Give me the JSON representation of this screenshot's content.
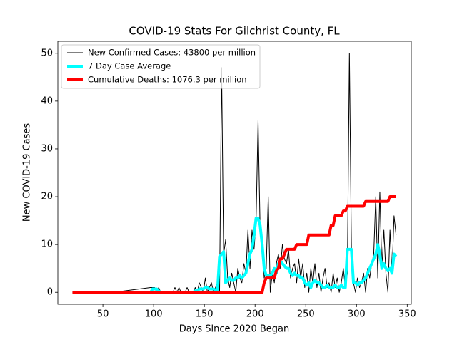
{
  "chart_data": {
    "type": "line",
    "title": "COVID-19 Stats For Gilchrist County, FL",
    "xlabel": "Days Since 2020 Began",
    "ylabel": "New COVID-19 Cases",
    "xlim": [
      5.6,
      354
    ],
    "ylim": [
      -2.5,
      52.5
    ],
    "xticks": [
      50,
      100,
      150,
      200,
      250,
      300,
      350
    ],
    "yticks": [
      0,
      10,
      20,
      30,
      40,
      50
    ],
    "legend": "upper left",
    "x": [
      20,
      60,
      97,
      99,
      101,
      103,
      105,
      107,
      109,
      111,
      113,
      115,
      117,
      119,
      121,
      123,
      125,
      127,
      129,
      131,
      133,
      135,
      137,
      139,
      141,
      143,
      145,
      147,
      149,
      151,
      153,
      155,
      157,
      159,
      161,
      163,
      165,
      167,
      169,
      171,
      173,
      175,
      177,
      179,
      181,
      183,
      185,
      187,
      189,
      191,
      193,
      195,
      197,
      199,
      201,
      203,
      205,
      207,
      209,
      211,
      213,
      215,
      217,
      219,
      221,
      223,
      225,
      227,
      229,
      231,
      233,
      235,
      237,
      239,
      241,
      243,
      245,
      247,
      249,
      251,
      253,
      255,
      257,
      259,
      261,
      263,
      265,
      267,
      269,
      271,
      273,
      275,
      277,
      279,
      281,
      283,
      285,
      287,
      289,
      291,
      293,
      295,
      297,
      299,
      301,
      303,
      305,
      307,
      309,
      311,
      313,
      315,
      317,
      319,
      321,
      323,
      325,
      327,
      329,
      331,
      333,
      335,
      337,
      339
    ],
    "series": [
      {
        "name": "New Confirmed Cases: 43800 per million",
        "color": "#000000",
        "linewidth": 1,
        "values": [
          0,
          0,
          1,
          1,
          1,
          0,
          1,
          0,
          0,
          0,
          0,
          0,
          0,
          0,
          1,
          0,
          1,
          0,
          0,
          0,
          1,
          0,
          0,
          0,
          1,
          0,
          2,
          1,
          0,
          3,
          0,
          1,
          2,
          0,
          1,
          2,
          0,
          47,
          8,
          11,
          3,
          1,
          4,
          2,
          0,
          5,
          3,
          2,
          6,
          4,
          13,
          5,
          13,
          9,
          15,
          36,
          13,
          10,
          3,
          5,
          20,
          0,
          4,
          2,
          6,
          8,
          5,
          10,
          7,
          6,
          9,
          3,
          5,
          6,
          2,
          7,
          3,
          6,
          1,
          4,
          0,
          5,
          2,
          6,
          1,
          4,
          0,
          3,
          5,
          1,
          2,
          0,
          4,
          1,
          3,
          0,
          2,
          5,
          1,
          4,
          50,
          9,
          2,
          0,
          3,
          1,
          2,
          4,
          0,
          5,
          3,
          6,
          8,
          20,
          3,
          21,
          5,
          13,
          4,
          0,
          13,
          4,
          16,
          12
        ]
      },
      {
        "name": "7 Day Case Average",
        "color": "#00ffff",
        "linewidth": 4,
        "values": [
          0,
          0,
          0,
          0.7,
          0.7,
          0.7,
          0.3,
          0,
          0,
          0,
          0,
          0,
          0,
          0,
          0,
          0,
          0,
          0,
          0,
          0,
          0,
          0,
          0,
          0,
          0.3,
          0.3,
          0.7,
          0.7,
          0.7,
          1,
          1,
          0.7,
          0.7,
          0.7,
          0.5,
          0.5,
          7.5,
          8,
          8.5,
          2,
          2.5,
          3,
          2.5,
          2.5,
          3,
          3,
          3.5,
          3,
          3.5,
          4,
          6,
          8,
          9,
          12,
          15.5,
          15.5,
          14,
          10,
          5,
          3.5,
          3.5,
          3.5,
          4,
          5,
          4,
          6,
          6.5,
          6,
          5.5,
          5,
          5,
          4,
          3.5,
          4,
          3.5,
          3.5,
          3,
          3,
          2,
          1.5,
          2,
          1,
          2,
          2.5,
          2,
          2,
          1.5,
          1,
          1,
          1.5,
          1,
          1,
          1,
          1.5,
          1,
          1,
          1.5,
          1,
          1,
          9,
          9,
          9,
          2,
          2,
          1.5,
          2,
          2,
          2.5,
          3,
          4,
          5,
          6,
          7,
          8,
          10,
          8,
          5,
          6,
          5,
          4.5,
          5,
          4,
          8,
          7.5
        ]
      },
      {
        "name": "Cumulative Deaths: 1076.3 per million",
        "color": "#ff0000",
        "linewidth": 4,
        "values": [
          0,
          0,
          0,
          0,
          0,
          0,
          0,
          0,
          0,
          0,
          0,
          0,
          0,
          0,
          0,
          0,
          0,
          0,
          0,
          0,
          0,
          0,
          0,
          0,
          0,
          0,
          0,
          0,
          0,
          0,
          0,
          0,
          0,
          0,
          0,
          0,
          0,
          0,
          0,
          0,
          0,
          0,
          0,
          0,
          0,
          0,
          0,
          0,
          0,
          0,
          0,
          0,
          0,
          0,
          0,
          0,
          0,
          0,
          2,
          3,
          3,
          3,
          3,
          3,
          4.5,
          5,
          7,
          7,
          8,
          9,
          9,
          9,
          9,
          9,
          10,
          10,
          10,
          10,
          10,
          10,
          12,
          12,
          12,
          12,
          12,
          12,
          12,
          12,
          12,
          12,
          12,
          14,
          14,
          16,
          16,
          16,
          16,
          17,
          17,
          18,
          18,
          18,
          18,
          18,
          18,
          18,
          18,
          18,
          19,
          19,
          19,
          19,
          19,
          19,
          19,
          19,
          19,
          19,
          19,
          19,
          20,
          20,
          20,
          20
        ]
      }
    ]
  }
}
